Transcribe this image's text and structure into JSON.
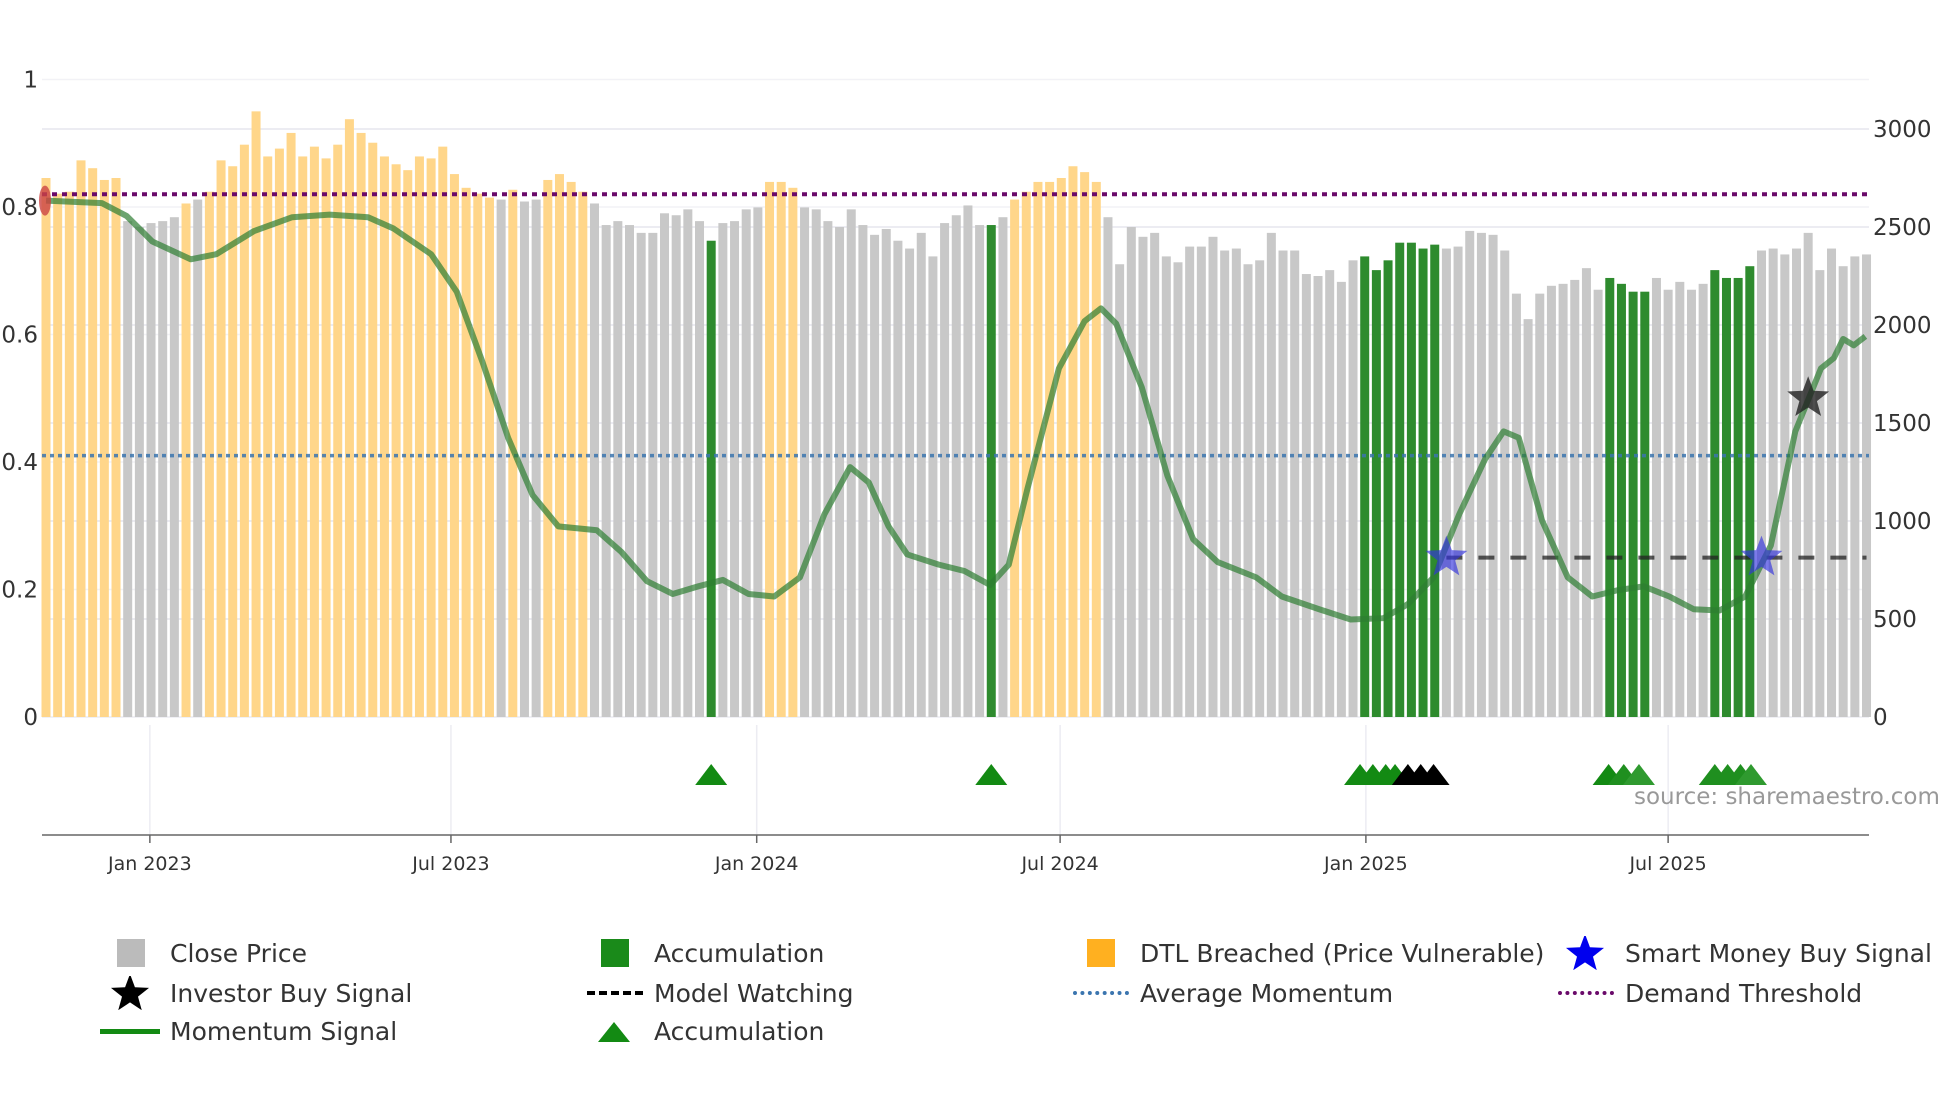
{
  "chart_data": {
    "type": "bar",
    "title": "",
    "x_unit": "week index from start week",
    "start_week": "2022-10-30",
    "x_ticks": [
      {
        "label": "Jan 2023",
        "week": 8.9
      },
      {
        "label": "Jul 2023",
        "week": 34.7
      },
      {
        "label": "Jan 2024",
        "week": 60.9
      },
      {
        "label": "Jul 2024",
        "week": 86.9
      },
      {
        "label": "Jan 2025",
        "week": 113.1
      },
      {
        "label": "Jul 2025",
        "week": 139.0
      }
    ],
    "left_axis": {
      "range": [
        0,
        1
      ],
      "ticks": [
        "0",
        "0.2",
        "0.4",
        "0.6",
        "0.8",
        "1"
      ]
    },
    "right_axis": {
      "range": [
        0,
        3050
      ],
      "ticks": [
        "0",
        "500",
        "1000",
        "1500",
        "2000",
        "2500",
        "3000"
      ]
    },
    "bar_heights_top_y_source": "close price per week (right axis)",
    "bars": {
      "categories_legend": {
        "G": "Close Price",
        "A": "Accumulation",
        "O": "DTL Breached (Price Vulnerable)"
      },
      "colors": {
        "G": "#c8c8c8",
        "A": "#2e8b2e",
        "O": "#ffd68a"
      },
      "series": [
        [
          "O",
          2750
        ],
        [
          "O",
          2670
        ],
        [
          "O",
          2680
        ],
        [
          "O",
          2840
        ],
        [
          "O",
          2800
        ],
        [
          "O",
          2740
        ],
        [
          "O",
          2750
        ],
        [
          "G",
          2530
        ],
        [
          "G",
          2500
        ],
        [
          "G",
          2520
        ],
        [
          "G",
          2530
        ],
        [
          "G",
          2550
        ],
        [
          "O",
          2620
        ],
        [
          "G",
          2640
        ],
        [
          "O",
          2680
        ],
        [
          "O",
          2840
        ],
        [
          "O",
          2810
        ],
        [
          "O",
          2920
        ],
        [
          "O",
          3090
        ],
        [
          "O",
          2860
        ],
        [
          "O",
          2900
        ],
        [
          "O",
          2980
        ],
        [
          "O",
          2860
        ],
        [
          "O",
          2910
        ],
        [
          "O",
          2850
        ],
        [
          "O",
          2920
        ],
        [
          "O",
          3050
        ],
        [
          "O",
          2980
        ],
        [
          "O",
          2930
        ],
        [
          "O",
          2860
        ],
        [
          "O",
          2820
        ],
        [
          "O",
          2790
        ],
        [
          "O",
          2860
        ],
        [
          "O",
          2850
        ],
        [
          "O",
          2910
        ],
        [
          "O",
          2770
        ],
        [
          "O",
          2700
        ],
        [
          "O",
          2670
        ],
        [
          "O",
          2650
        ],
        [
          "G",
          2640
        ],
        [
          "O",
          2690
        ],
        [
          "G",
          2630
        ],
        [
          "G",
          2640
        ],
        [
          "O",
          2740
        ],
        [
          "O",
          2770
        ],
        [
          "O",
          2730
        ],
        [
          "O",
          2680
        ],
        [
          "G",
          2620
        ],
        [
          "G",
          2510
        ],
        [
          "G",
          2530
        ],
        [
          "G",
          2510
        ],
        [
          "G",
          2470
        ],
        [
          "G",
          2470
        ],
        [
          "G",
          2570
        ],
        [
          "G",
          2560
        ],
        [
          "G",
          2590
        ],
        [
          "G",
          2530
        ],
        [
          "A",
          2430
        ],
        [
          "G",
          2520
        ],
        [
          "G",
          2530
        ],
        [
          "G",
          2590
        ],
        [
          "G",
          2600
        ],
        [
          "O",
          2730
        ],
        [
          "O",
          2730
        ],
        [
          "O",
          2700
        ],
        [
          "G",
          2600
        ],
        [
          "G",
          2590
        ],
        [
          "G",
          2530
        ],
        [
          "G",
          2500
        ],
        [
          "G",
          2590
        ],
        [
          "G",
          2510
        ],
        [
          "G",
          2460
        ],
        [
          "G",
          2490
        ],
        [
          "G",
          2430
        ],
        [
          "G",
          2390
        ],
        [
          "G",
          2470
        ],
        [
          "G",
          2350
        ],
        [
          "G",
          2520
        ],
        [
          "G",
          2560
        ],
        [
          "G",
          2610
        ],
        [
          "G",
          2510
        ],
        [
          "A",
          2510
        ],
        [
          "G",
          2550
        ],
        [
          "O",
          2640
        ],
        [
          "O",
          2680
        ],
        [
          "O",
          2730
        ],
        [
          "O",
          2730
        ],
        [
          "O",
          2750
        ],
        [
          "O",
          2810
        ],
        [
          "O",
          2780
        ],
        [
          "O",
          2730
        ],
        [
          "G",
          2550
        ],
        [
          "G",
          2310
        ],
        [
          "G",
          2500
        ],
        [
          "G",
          2450
        ],
        [
          "G",
          2470
        ],
        [
          "G",
          2350
        ],
        [
          "G",
          2320
        ],
        [
          "G",
          2400
        ],
        [
          "G",
          2400
        ],
        [
          "G",
          2450
        ],
        [
          "G",
          2380
        ],
        [
          "G",
          2390
        ],
        [
          "G",
          2310
        ],
        [
          "G",
          2330
        ],
        [
          "G",
          2470
        ],
        [
          "G",
          2380
        ],
        [
          "G",
          2380
        ],
        [
          "G",
          2260
        ],
        [
          "G",
          2250
        ],
        [
          "G",
          2280
        ],
        [
          "G",
          2220
        ],
        [
          "G",
          2330
        ],
        [
          "A",
          2350
        ],
        [
          "A",
          2280
        ],
        [
          "A",
          2330
        ],
        [
          "A",
          2420
        ],
        [
          "A",
          2420
        ],
        [
          "A",
          2390
        ],
        [
          "A",
          2410
        ],
        [
          "G",
          2390
        ],
        [
          "G",
          2400
        ],
        [
          "G",
          2480
        ],
        [
          "G",
          2470
        ],
        [
          "G",
          2460
        ],
        [
          "G",
          2380
        ],
        [
          "G",
          2160
        ],
        [
          "G",
          2030
        ],
        [
          "G",
          2160
        ],
        [
          "G",
          2200
        ],
        [
          "G",
          2210
        ],
        [
          "G",
          2230
        ],
        [
          "G",
          2290
        ],
        [
          "G",
          2180
        ],
        [
          "A",
          2240
        ],
        [
          "A",
          2210
        ],
        [
          "A",
          2170
        ],
        [
          "A",
          2170
        ],
        [
          "G",
          2240
        ],
        [
          "G",
          2180
        ],
        [
          "G",
          2220
        ],
        [
          "G",
          2180
        ],
        [
          "G",
          2210
        ],
        [
          "A",
          2280
        ],
        [
          "A",
          2240
        ],
        [
          "A",
          2240
        ],
        [
          "A",
          2300
        ],
        [
          "G",
          2380
        ],
        [
          "G",
          2390
        ],
        [
          "G",
          2360
        ],
        [
          "G",
          2390
        ],
        [
          "G",
          2470
        ],
        [
          "G",
          2280
        ],
        [
          "G",
          2390
        ],
        [
          "G",
          2300
        ],
        [
          "G",
          2350
        ],
        [
          "G",
          2360
        ]
      ]
    },
    "momentum_signal": {
      "name": "Momentum Signal",
      "color": "#2e7d32",
      "axis": "left",
      "points": [
        [
          0,
          0.81
        ],
        [
          4.8,
          0.806
        ],
        [
          6.9,
          0.786
        ],
        [
          9.1,
          0.746
        ],
        [
          12.4,
          0.718
        ],
        [
          14.6,
          0.726
        ],
        [
          17.8,
          0.762
        ],
        [
          21.1,
          0.784
        ],
        [
          24.3,
          0.788
        ],
        [
          27.6,
          0.784
        ],
        [
          29.8,
          0.766
        ],
        [
          33.0,
          0.726
        ],
        [
          35.2,
          0.667
        ],
        [
          37.4,
          0.557
        ],
        [
          39.6,
          0.438
        ],
        [
          41.7,
          0.348
        ],
        [
          43.9,
          0.299
        ],
        [
          47.2,
          0.293
        ],
        [
          49.3,
          0.259
        ],
        [
          51.5,
          0.213
        ],
        [
          53.7,
          0.193
        ],
        [
          55.9,
          0.205
        ],
        [
          58.0,
          0.215
        ],
        [
          60.2,
          0.193
        ],
        [
          62.4,
          0.189
        ],
        [
          64.6,
          0.219
        ],
        [
          66.7,
          0.318
        ],
        [
          68.9,
          0.392
        ],
        [
          70.5,
          0.368
        ],
        [
          72.2,
          0.299
        ],
        [
          73.8,
          0.255
        ],
        [
          76.5,
          0.239
        ],
        [
          78.7,
          0.229
        ],
        [
          80.9,
          0.207
        ],
        [
          82.5,
          0.239
        ],
        [
          84.1,
          0.358
        ],
        [
          86.8,
          0.547
        ],
        [
          89.0,
          0.621
        ],
        [
          90.4,
          0.641
        ],
        [
          91.7,
          0.617
        ],
        [
          93.9,
          0.517
        ],
        [
          96.1,
          0.378
        ],
        [
          98.3,
          0.279
        ],
        [
          100.4,
          0.243
        ],
        [
          103.7,
          0.219
        ],
        [
          105.9,
          0.189
        ],
        [
          109.1,
          0.169
        ],
        [
          111.8,
          0.153
        ],
        [
          114.6,
          0.155
        ],
        [
          116.7,
          0.177
        ],
        [
          118.9,
          0.219
        ],
        [
          121.1,
          0.318
        ],
        [
          123.3,
          0.404
        ],
        [
          124.9,
          0.448
        ],
        [
          126.2,
          0.438
        ],
        [
          128.2,
          0.308
        ],
        [
          130.4,
          0.219
        ],
        [
          132.5,
          0.189
        ],
        [
          134.7,
          0.199
        ],
        [
          136.9,
          0.205
        ],
        [
          139.1,
          0.189
        ],
        [
          141.2,
          0.169
        ],
        [
          143.4,
          0.167
        ],
        [
          145.6,
          0.189
        ],
        [
          147.8,
          0.269
        ],
        [
          149.9,
          0.448
        ],
        [
          152.1,
          0.547
        ],
        [
          153.2,
          0.563
        ],
        [
          154.0,
          0.593
        ],
        [
          154.9,
          0.583
        ],
        [
          155.9,
          0.597
        ]
      ]
    },
    "average_momentum": {
      "name": "Average Momentum",
      "value": 0.41,
      "color": "#3b75af"
    },
    "demand_threshold": {
      "name": "Demand Threshold",
      "value": 0.82,
      "color": "#6a0a6a"
    },
    "model_watching": {
      "name": "Model Watching",
      "value": 0.25,
      "from_week": 120,
      "to_week": 156,
      "color": "#222222"
    },
    "smart_money_buy_signals": {
      "name": "Smart Money Buy Signal",
      "color": "#3333dd",
      "points": [
        [
          120,
          0.25
        ],
        [
          147,
          0.25
        ]
      ]
    },
    "investor_buy_signals": {
      "name": "Investor Buy Signal",
      "color": "#222222",
      "points": [
        [
          151,
          0.5
        ]
      ]
    },
    "start_marker": {
      "color": "#cc4444",
      "points": [
        [
          0,
          0.81
        ]
      ]
    },
    "accumulation_triangles": [
      {
        "week": 57,
        "color": "#138a13"
      },
      {
        "week": 81,
        "color": "#138a13"
      },
      {
        "week": 112.6,
        "color": "#138a13"
      },
      {
        "week": 113.7,
        "color": "#138a13"
      },
      {
        "week": 114.8,
        "color": "#138a13"
      },
      {
        "week": 115.6,
        "color": "#138a13"
      },
      {
        "week": 116.7,
        "color": "#000000"
      },
      {
        "week": 117.8,
        "color": "#000000"
      },
      {
        "week": 118.9,
        "color": "#000000"
      },
      {
        "week": 133.9,
        "color": "#138a13"
      },
      {
        "week": 135.2,
        "color": "#1f8f1f"
      },
      {
        "week": 136.5,
        "color": "#2f9a2f"
      },
      {
        "week": 143.0,
        "color": "#1f8f1f"
      },
      {
        "week": 144.1,
        "color": "#1f8f1f"
      },
      {
        "week": 145.2,
        "color": "#1f8f1f"
      },
      {
        "week": 146.1,
        "color": "#2f9a2f"
      }
    ],
    "source": "source: sharemaestro.com",
    "legend": [
      {
        "label": "Close Price",
        "icon": "gray-square",
        "color": "#bbbbbb"
      },
      {
        "label": "Accumulation",
        "icon": "green-square",
        "color": "#1a8a1a"
      },
      {
        "label": "DTL Breached (Price Vulnerable)",
        "icon": "orange-square",
        "color": "#ffb020"
      },
      {
        "label": "Smart Money Buy Signal",
        "icon": "blue-star",
        "color": "#0000ee"
      },
      {
        "label": "Investor Buy Signal",
        "icon": "black-star",
        "color": "#000000"
      },
      {
        "label": "Model Watching",
        "icon": "black-dash-line",
        "color": "#000000"
      },
      {
        "label": "Average Momentum",
        "icon": "blue-dotted-line",
        "color": "#3b75af"
      },
      {
        "label": "Demand Threshold",
        "icon": "purple-dotted-line",
        "color": "#6a0a6a"
      },
      {
        "label": "Momentum Signal",
        "icon": "green-line",
        "color": "#138a13"
      },
      {
        "label": "Accumulation",
        "icon": "green-triangle",
        "color": "#138a13"
      }
    ]
  }
}
